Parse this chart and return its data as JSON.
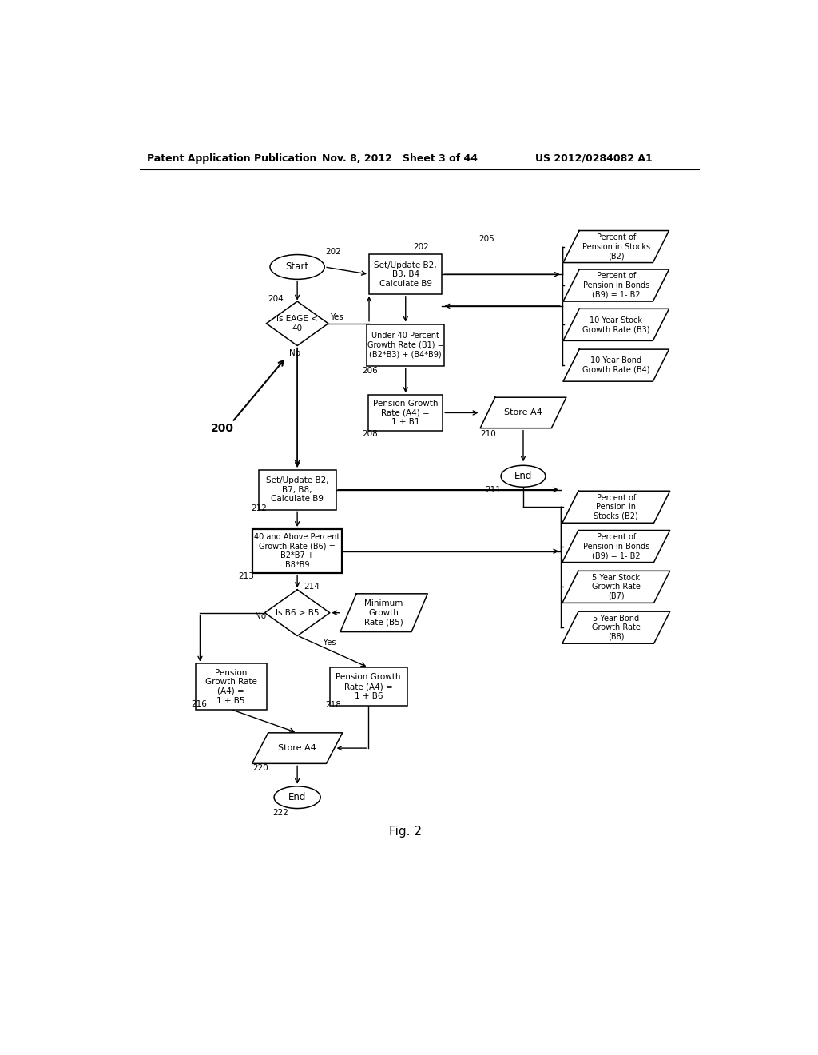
{
  "title_left": "Patent Application Publication",
  "title_mid": "Nov. 8, 2012   Sheet 3 of 44",
  "title_right": "US 2012/0284082 A1",
  "fig_label": "Fig. 2",
  "background": "#ffffff",
  "line_color": "#000000",
  "text_color": "#000000"
}
